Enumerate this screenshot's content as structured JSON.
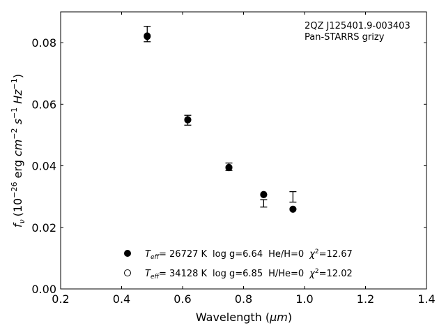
{
  "chart_data": {
    "type": "scatter",
    "annotation": {
      "object": "2QZ J125401.9-003403",
      "survey": "Pan-STARRS grizy"
    },
    "xlabel": "Wavelength (",
    "xlabel_unit": "μm",
    "xlabel_close": ")",
    "ylabel": "f",
    "ylabel_sub": "ν",
    "ylabel_parts": [
      "(10",
      "−26",
      " erg ",
      "cm",
      "−2",
      " s",
      "−1",
      " Hz",
      "−1",
      ")"
    ],
    "xlim": [
      0.2,
      1.4
    ],
    "ylim": [
      0.0,
      0.09
    ],
    "x_ticks": [
      "0.2",
      "0.4",
      "0.6",
      "0.8",
      "1.0",
      "1.2",
      "1.4"
    ],
    "y_ticks": [
      "0.00",
      "0.02",
      "0.04",
      "0.06",
      "0.08"
    ],
    "grid": false,
    "observed": {
      "x": [
        0.484,
        0.617,
        0.752,
        0.866,
        0.962
      ],
      "y": [
        0.0828,
        0.0548,
        0.0397,
        0.0278,
        0.0299
      ],
      "yerr": [
        0.0025,
        0.0016,
        0.0012,
        0.0012,
        0.0017
      ]
    },
    "models": [
      {
        "marker": "filled-circle",
        "teff_label": "T",
        "teff_sub": "eff",
        "teff_value": "= 26727 K",
        "logg": "log g=6.64",
        "comp": "He/H=0",
        "chi_label": "χ",
        "chi_sup": "2",
        "chi_value": "=12.67",
        "x": [
          0.484,
          0.617,
          0.752,
          0.866,
          0.962
        ],
        "y": [
          0.082,
          0.055,
          0.0395,
          0.0307,
          0.0259
        ]
      },
      {
        "marker": "open-circle",
        "teff_label": "T",
        "teff_sub": "eff",
        "teff_value": "= 34128 K",
        "logg": "log g=6.85",
        "comp": "H/He=0",
        "chi_label": "χ",
        "chi_sup": "2",
        "chi_value": "=12.02",
        "x": [
          0.484,
          0.617,
          0.752,
          0.866,
          0.962
        ],
        "y": [
          0.0822,
          0.0549,
          0.0394,
          0.0306,
          0.0259
        ]
      }
    ],
    "legend_position": "lower-center"
  }
}
